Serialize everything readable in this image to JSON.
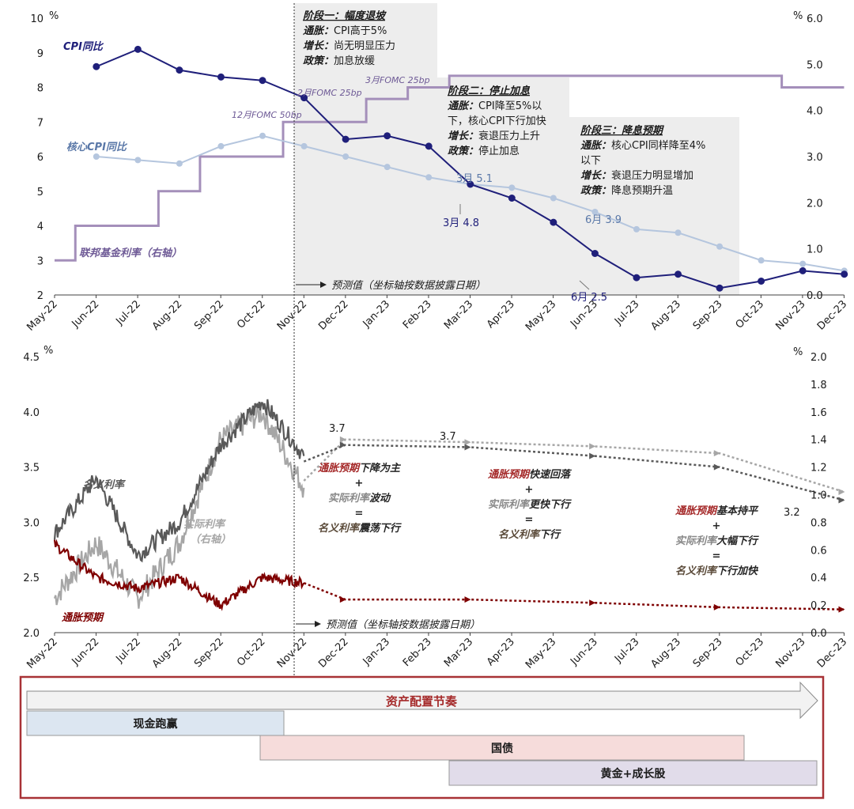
{
  "months": [
    "May-22",
    "Jun-22",
    "Jul-22",
    "Aug-22",
    "Sep-22",
    "Oct-22",
    "Nov-22",
    "Dec-22",
    "Jan-23",
    "Feb-23",
    "Mar-23",
    "Apr-23",
    "May-23",
    "Jun-23",
    "Jul-23",
    "Aug-23",
    "Sep-23",
    "Oct-23",
    "Nov-23",
    "Dec-23"
  ],
  "colors": {
    "cpi": "#1f1f7a",
    "core": "#b5c6de",
    "core_label": "#5a78a8",
    "fed": "#a48fba",
    "fed_label": "#6e5a96",
    "nominal": "#595959",
    "real": "#a6a6a6",
    "breakeven": "#7f0000",
    "shade": "#ededed",
    "frame": "#a83236",
    "accent_red": "#a52a2a",
    "accent_gray": "#7f7f7f",
    "accent_dark": "#262626"
  },
  "chart_data": [
    {
      "type": "line",
      "title": "",
      "xlabel": "",
      "y_unit_left": "%",
      "y_unit_right": "%",
      "ylim_left": [
        2,
        10
      ],
      "ylim_right": [
        0.0,
        6.0
      ],
      "yticks_left": [
        "2",
        "3",
        "4",
        "5",
        "6",
        "7",
        "8",
        "9",
        "10"
      ],
      "yticks_right": [
        "0.0",
        "1.0",
        "2.0",
        "3.0",
        "4.0",
        "5.0",
        "6.0"
      ],
      "x_axis": "monthly May-22 to Dec-23",
      "grid": false,
      "series": [
        {
          "name": "CPI同比",
          "axis": "left",
          "dates": [
            "Jun-22",
            "Jul-22",
            "Aug-22",
            "Sep-22",
            "Oct-22",
            "Nov-22",
            "Dec-22",
            "Jan-23",
            "Feb-23",
            "Mar-23",
            "Apr-23",
            "May-23",
            "Jun-23",
            "Jul-23",
            "Aug-23",
            "Sep-23",
            "Oct-23",
            "Nov-23",
            "Dec-23"
          ],
          "values": [
            8.6,
            9.1,
            8.5,
            8.3,
            8.2,
            7.7,
            6.5,
            6.6,
            6.3,
            5.2,
            4.8,
            4.1,
            3.2,
            2.5,
            2.6,
            2.2,
            2.4,
            2.7,
            2.6
          ]
        },
        {
          "name": "核心CPI同比",
          "axis": "left",
          "dates": [
            "Jun-22",
            "Jul-22",
            "Aug-22",
            "Sep-22",
            "Oct-22",
            "Nov-22",
            "Dec-22",
            "Jan-23",
            "Feb-23",
            "Mar-23",
            "Apr-23",
            "May-23",
            "Jun-23",
            "Jul-23",
            "Aug-23",
            "Sep-23",
            "Oct-23",
            "Nov-23",
            "Dec-23"
          ],
          "values": [
            6.0,
            5.9,
            5.8,
            6.3,
            6.6,
            6.3,
            6.0,
            5.7,
            5.4,
            5.2,
            5.1,
            4.8,
            4.4,
            3.9,
            3.8,
            3.4,
            3.0,
            2.9,
            2.7
          ]
        },
        {
          "name": "联邦基金利率（右轴）",
          "axis": "right",
          "step": true,
          "dates": [
            "May-22",
            "Jun-22",
            "Jul-22",
            "Aug-22",
            "Sep-22",
            "Oct-22",
            "Nov-22",
            "Dec-22",
            "Jan-23",
            "Feb-23",
            "Mar-23",
            "Apr-23",
            "May-23",
            "Jun-23",
            "Jul-23",
            "Aug-23",
            "Sep-23",
            "Oct-23",
            "Nov-23",
            "Dec-23"
          ],
          "values": [
            0.75,
            1.5,
            1.5,
            2.25,
            3.0,
            3.0,
            3.75,
            3.75,
            4.25,
            4.5,
            4.75,
            4.75,
            4.75,
            4.75,
            4.75,
            4.75,
            4.75,
            4.75,
            4.5,
            4.5
          ]
        }
      ],
      "data_labels": [
        "3月 5.1",
        "3月 4.8",
        "6月 3.9",
        "6月 2.5"
      ],
      "annotations": [
        "12月FOMC 50bp",
        "2月FOMC 25bp",
        "3月FOMC 25bp",
        "预测值（坐标轴按数据披露日期）"
      ],
      "panels": [
        {
          "title": "阶段一：幅度退坡",
          "rows": [
            {
              "k": "通胀：",
              "v": "CPI高于5%"
            },
            {
              "k": "增长：",
              "v": "尚无明显压力"
            },
            {
              "k": "政策：",
              "v": "加息放缓"
            }
          ]
        },
        {
          "title": "阶段二：停止加息",
          "rows": [
            {
              "k": "通胀：",
              "v": "CPI降至5%以"
            },
            {
              "k": "",
              "v": "下，核心CPI下行加快"
            },
            {
              "k": "增长：",
              "v": "衰退压力上升"
            },
            {
              "k": "政策：",
              "v": "停止加息"
            }
          ]
        },
        {
          "title": "阶段三：降息预期",
          "rows": [
            {
              "k": "通胀：",
              "v": "核心CPI同样降至4%"
            },
            {
              "k": "",
              "v": "以下"
            },
            {
              "k": "增长：",
              "v": "衰退压力明显增加"
            },
            {
              "k": "政策：",
              "v": "降息预期升温"
            }
          ]
        }
      ]
    },
    {
      "type": "line",
      "title": "",
      "y_unit_left": "%",
      "y_unit_right": "%",
      "ylim_left": [
        2.0,
        4.5
      ],
      "ylim_right": [
        0.0,
        2.0
      ],
      "yticks_left": [
        "2.0",
        "2.5",
        "3.0",
        "3.5",
        "4.0",
        "4.5"
      ],
      "yticks_right": [
        "0.0",
        "0.2",
        "0.4",
        "0.6",
        "0.8",
        "1.0",
        "1.2",
        "1.4",
        "1.6",
        "1.8",
        "2.0"
      ],
      "grid": false,
      "series": [
        {
          "name": "名义利率",
          "axis": "left",
          "style": "daily",
          "dates": [
            "May-22",
            "Jun-22",
            "Jul-22",
            "Aug-22",
            "Sep-22",
            "Oct-22",
            "Nov-22"
          ],
          "values": [
            2.9,
            3.4,
            2.7,
            3.0,
            3.7,
            4.1,
            3.6
          ]
        },
        {
          "name": "实际利率（右轴）",
          "axis": "right",
          "style": "daily",
          "dates": [
            "May-22",
            "Jun-22",
            "Jul-22",
            "Aug-22",
            "Sep-22",
            "Oct-22",
            "Nov-22"
          ],
          "values": [
            0.25,
            0.65,
            0.25,
            0.65,
            1.4,
            1.6,
            1.05
          ]
        },
        {
          "name": "通胀预期",
          "axis": "left",
          "style": "daily",
          "dates": [
            "May-22",
            "Jun-22",
            "Jul-22",
            "Aug-22",
            "Sep-22",
            "Oct-22",
            "Nov-22"
          ],
          "values": [
            2.8,
            2.5,
            2.4,
            2.5,
            2.25,
            2.5,
            2.45
          ]
        },
        {
          "name": "名义利率预测",
          "axis": "left",
          "style": "forecast",
          "dates": [
            "Nov-22",
            "Dec-22",
            "Mar-23",
            "Jun-23",
            "Sep-23",
            "Dec-23"
          ],
          "values": [
            3.55,
            3.7,
            3.68,
            3.6,
            3.5,
            3.2
          ]
        },
        {
          "name": "实际利率预测",
          "axis": "right",
          "style": "forecast",
          "dates": [
            "Nov-22",
            "Dec-22",
            "Mar-23",
            "Jun-23",
            "Sep-23",
            "Dec-23"
          ],
          "values": [
            1.1,
            1.4,
            1.38,
            1.35,
            1.3,
            1.02
          ]
        },
        {
          "name": "通胀预期预测",
          "axis": "left",
          "style": "forecast",
          "dates": [
            "Nov-22",
            "Dec-22",
            "Mar-23",
            "Jun-23",
            "Sep-23",
            "Dec-23"
          ],
          "values": [
            2.45,
            2.3,
            2.3,
            2.27,
            2.23,
            2.21
          ]
        }
      ],
      "data_labels": [
        "3.7",
        "3.7",
        "3.2"
      ],
      "series_labels": [
        "名义利率",
        "实际利率",
        "（右轴）",
        "通胀预期"
      ],
      "forecast_label": "预测值（坐标轴按数据披露日期）",
      "equations": [
        {
          "lines": [
            [
              "通胀预期",
              "下降为主"
            ],
            [
              "+",
              ""
            ],
            [
              "实际利率",
              "波动"
            ],
            [
              "=",
              ""
            ],
            [
              "名义利率",
              "震荡下行"
            ]
          ]
        },
        {
          "lines": [
            [
              "通胀预期",
              "快速回落"
            ],
            [
              "+",
              ""
            ],
            [
              "实际利率",
              "更快下行"
            ],
            [
              "=",
              ""
            ],
            [
              "名义利率",
              "下行"
            ]
          ]
        },
        {
          "lines": [
            [
              "通胀预期",
              "基本持平"
            ],
            [
              "+",
              ""
            ],
            [
              "实际利率",
              "大幅下行"
            ],
            [
              "=",
              ""
            ],
            [
              "名义利率",
              "下行加快"
            ]
          ]
        }
      ]
    }
  ],
  "allocation": {
    "title": "资产配置节奏",
    "bars": [
      {
        "label": "现金跑赢",
        "color": "#dce6f1"
      },
      {
        "label": "国债",
        "color": "#f6dcdb"
      },
      {
        "label": "黄金+成长股",
        "color": "#e1dcea"
      }
    ]
  }
}
